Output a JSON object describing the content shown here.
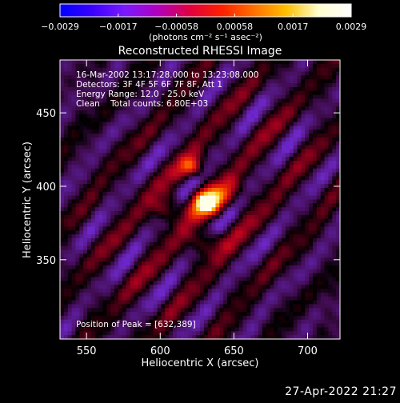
{
  "colorbar": {
    "tick_labels": [
      "−0.0029",
      "−0.0017",
      "−0.00058",
      "0.00058",
      "0.0017",
      "0.0029"
    ],
    "min": -0.0029,
    "max": 0.0029,
    "unit_label": "(photons cm⁻² s⁻¹ asec⁻²)",
    "colors": [
      "#0000ff",
      "#3a00ff",
      "#7a1aff",
      "#b000c0",
      "#e00040",
      "#ff2000",
      "#ff7000",
      "#ffc000",
      "#ffffd0",
      "#ffffff"
    ]
  },
  "chart_data": {
    "type": "heatmap",
    "title": "Reconstructed RHESSI Image",
    "xlabel": "Heliocentric X (arcsec)",
    "ylabel": "Heliocentric Y (arcsec)",
    "xlim": [
      532,
      722
    ],
    "ylim": [
      296,
      486
    ],
    "x_ticks": [
      550,
      600,
      650,
      700
    ],
    "y_ticks": [
      350,
      400,
      450
    ],
    "peak": [
      632,
      389
    ],
    "annotations": [
      "16-Mar-2002 13:17:28.000 to 13:23:08.000",
      "Detectors: 3F 4F 5F 6F 7F 8F, Att 1",
      "Energy Range: 12.0 - 25.0 keV",
      "Clean    Total counts: 6.80E+03"
    ],
    "peak_label": "Position of Peak = [632,389]",
    "grid": false
  },
  "footer": {
    "timestamp": "27-Apr-2022 21:27"
  }
}
